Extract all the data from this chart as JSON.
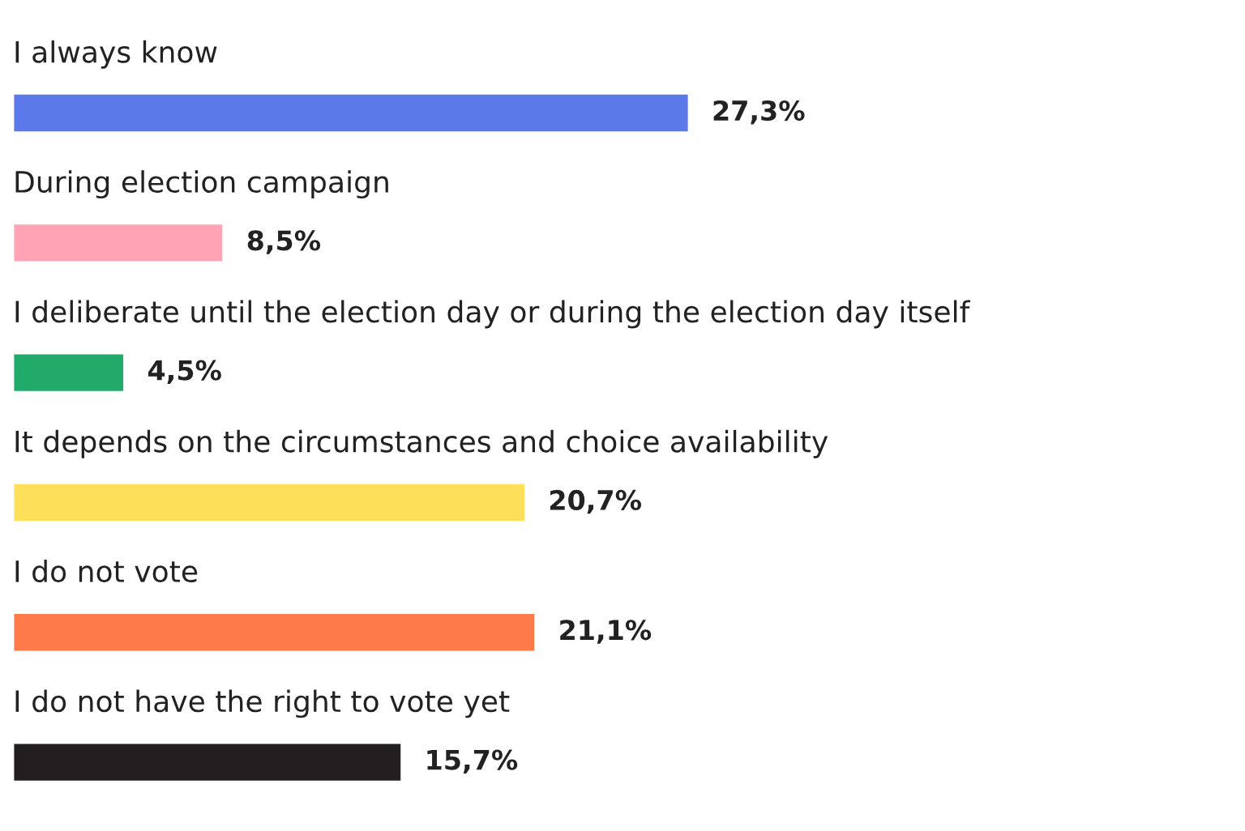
{
  "chart_data": {
    "type": "bar",
    "orientation": "horizontal",
    "categories": [
      "I always know",
      "During election campaign",
      "I deliberate until the election day or during the election day itself",
      "It depends on the circumstances and choice availability",
      "I do not vote",
      "I do not have the right to vote yet"
    ],
    "values": [
      27.3,
      8.5,
      4.5,
      20.7,
      21.1,
      15.7
    ],
    "colors": [
      "#5b79e8",
      "#ffa3b5",
      "#22aa6b",
      "#fddf5a",
      "#ff7a4a",
      "#231f20"
    ],
    "value_labels": [
      "27,3%",
      "8,5%",
      "4,5%",
      "20,7%",
      "21,1%",
      "15,7%"
    ]
  }
}
